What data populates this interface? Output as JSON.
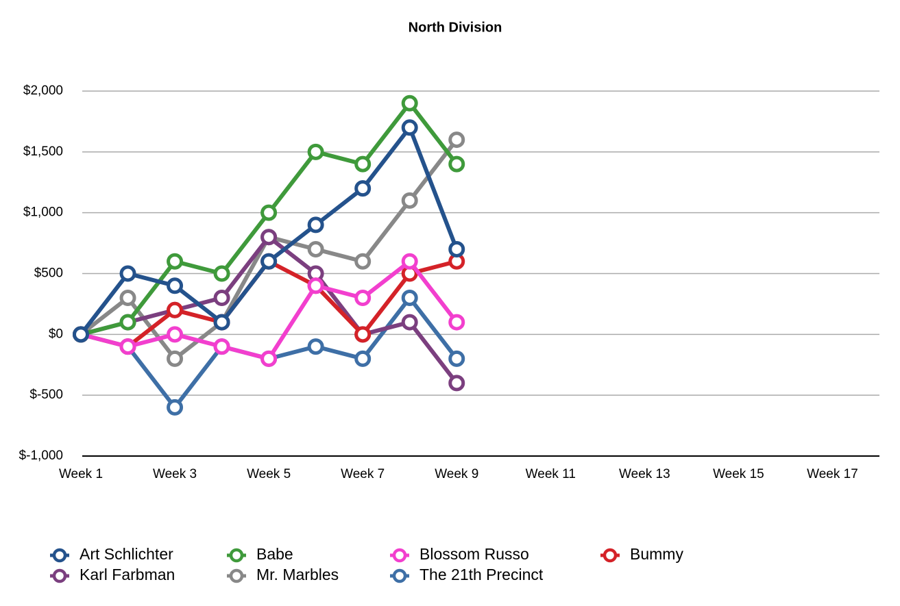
{
  "chart_data": {
    "type": "line",
    "title": "North Division",
    "categories": [
      "Week 1",
      null,
      "Week 3",
      null,
      "Week 5",
      null,
      "Week 7",
      null,
      "Week 9",
      null,
      "Week 11",
      null,
      "Week 13",
      null,
      "Week 15",
      null,
      "Week 17",
      null
    ],
    "ylim": [
      -1000,
      2000
    ],
    "yticks": [
      {
        "value": -1000,
        "label": "$-1,000"
      },
      {
        "value": -500,
        "label": "$-500"
      },
      {
        "value": 0,
        "label": "$0"
      },
      {
        "value": 500,
        "label": "$500"
      },
      {
        "value": 1000,
        "label": "$1,000"
      },
      {
        "value": 1500,
        "label": "$1,500"
      },
      {
        "value": 2000,
        "label": "$2,000"
      }
    ],
    "grid": true,
    "legend": "bottom",
    "series": [
      {
        "name": "Art Schlichter",
        "color": "#24528c",
        "values": [
          0,
          500,
          400,
          100,
          600,
          900,
          1200,
          1700,
          700,
          null,
          null,
          null,
          null,
          null,
          null,
          null,
          null,
          null
        ]
      },
      {
        "name": "Babe",
        "color": "#3f9a3b",
        "values": [
          0,
          100,
          600,
          500,
          1000,
          1500,
          1400,
          1900,
          1400,
          null,
          null,
          null,
          null,
          null,
          null,
          null,
          null,
          null
        ]
      },
      {
        "name": "Blossom Russo",
        "color": "#f23fce",
        "values": [
          0,
          -100,
          0,
          -100,
          -200,
          400,
          300,
          600,
          100,
          null,
          null,
          null,
          null,
          null,
          null,
          null,
          null,
          null
        ]
      },
      {
        "name": "Bummy",
        "color": "#d42228",
        "values": [
          0,
          -100,
          200,
          100,
          600,
          400,
          0,
          500,
          600,
          null,
          null,
          null,
          null,
          null,
          null,
          null,
          null,
          null
        ]
      },
      {
        "name": "Karl Farbman",
        "color": "#7b3f7f",
        "values": [
          0,
          100,
          200,
          300,
          800,
          500,
          0,
          100,
          -400,
          null,
          null,
          null,
          null,
          null,
          null,
          null,
          null,
          null
        ]
      },
      {
        "name": "Mr. Marbles",
        "color": "#888888",
        "values": [
          0,
          300,
          -200,
          100,
          800,
          700,
          600,
          1100,
          1600,
          null,
          null,
          null,
          null,
          null,
          null,
          null,
          null,
          null
        ]
      },
      {
        "name": "The 21th Precinct",
        "color": "#3e6fa6",
        "values": [
          0,
          -100,
          -600,
          -100,
          -200,
          -100,
          -200,
          300,
          -200,
          null,
          null,
          null,
          null,
          null,
          null,
          null,
          null,
          null
        ]
      }
    ]
  }
}
